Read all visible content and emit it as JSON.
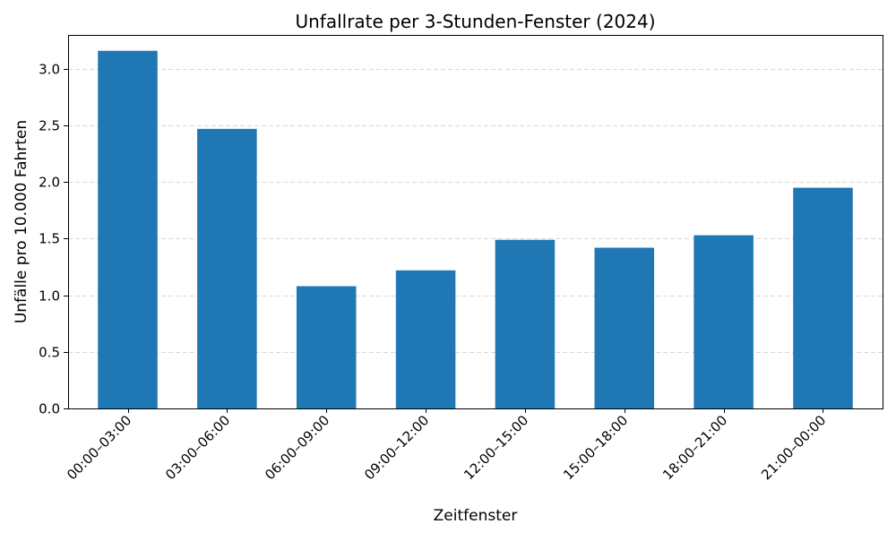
{
  "chart_data": {
    "type": "bar",
    "title": "Unfallrate per 3-Stunden-Fenster (2024)",
    "xlabel": "Zeitfenster",
    "ylabel": "Unfälle pro 10.000 Fahrten",
    "categories": [
      "00:00–03:00",
      "03:00–06:00",
      "06:00–09:00",
      "09:00–12:00",
      "12:00–15:00",
      "15:00–18:00",
      "18:00–21:00",
      "21:00–00:00"
    ],
    "values": [
      3.16,
      2.47,
      1.08,
      1.22,
      1.49,
      1.42,
      1.53,
      1.95
    ],
    "ylim": [
      0,
      3.3
    ],
    "yticks": [
      0.0,
      0.5,
      1.0,
      1.5,
      2.0,
      2.5,
      3.0
    ],
    "ytick_labels": [
      "0.0",
      "0.5",
      "1.0",
      "1.5",
      "2.0",
      "2.5",
      "3.0"
    ],
    "grid": "y-dashed",
    "legend": "none",
    "colors": {
      "bar": "#1f77b4",
      "grid": "#cccccc",
      "axis": "#000000"
    }
  }
}
